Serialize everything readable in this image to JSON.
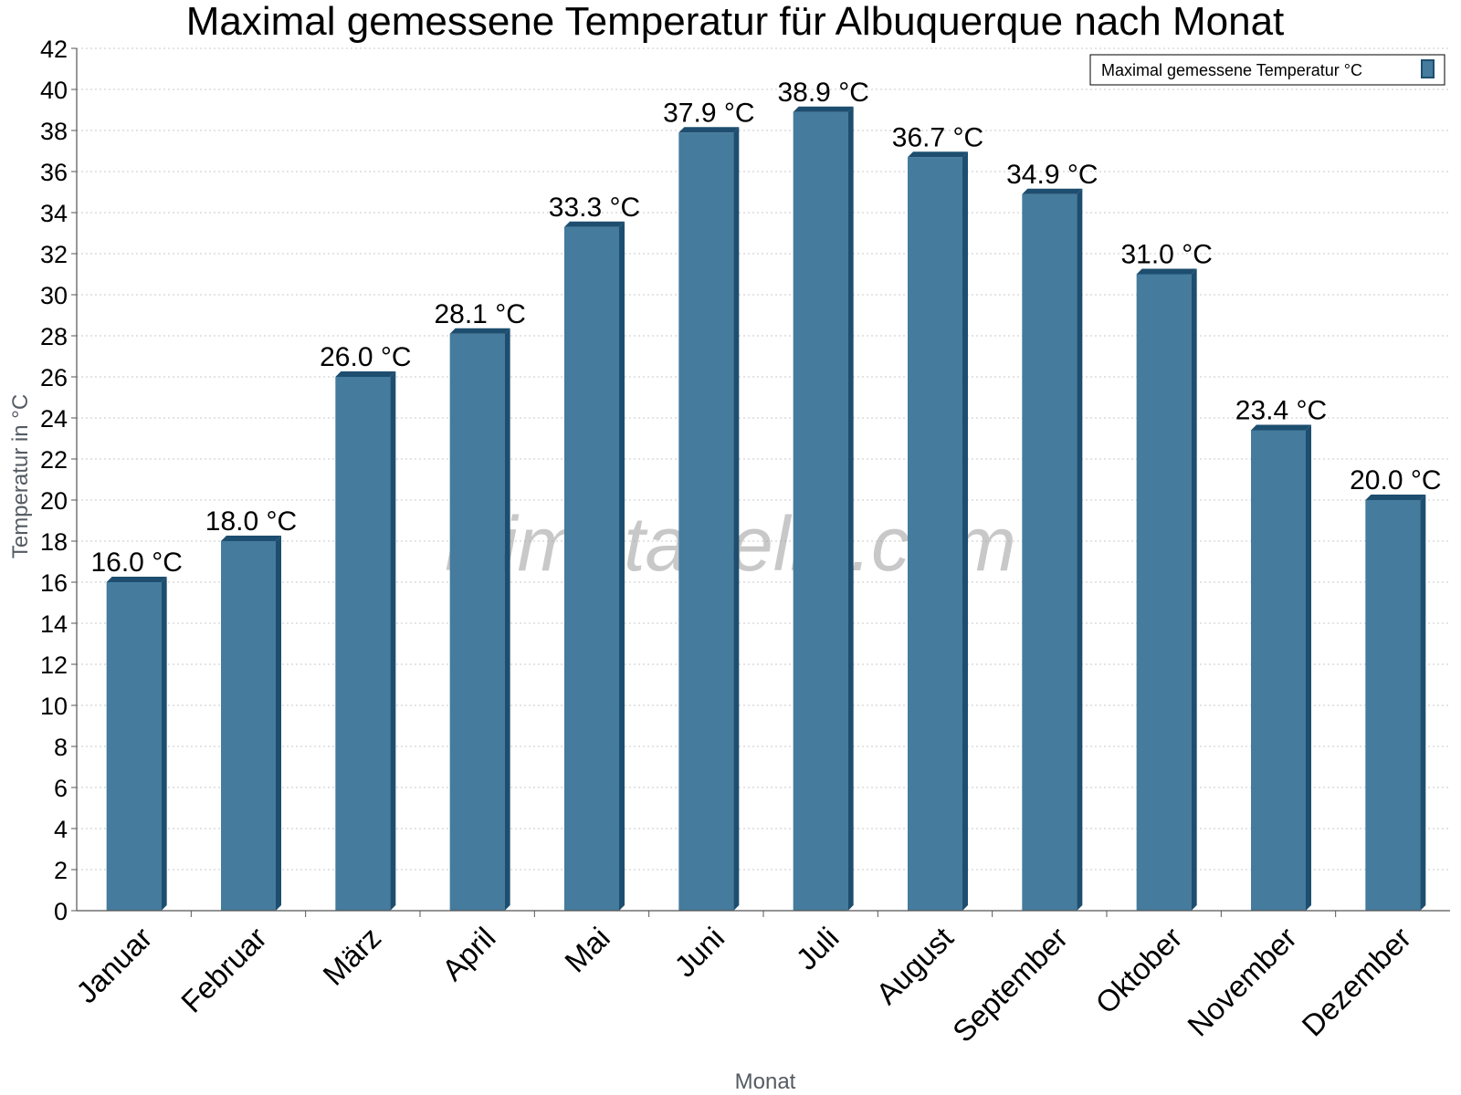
{
  "chart_data": {
    "type": "bar",
    "title": "Maximal gemessene Temperatur für Albuquerque nach Monat",
    "xlabel": "Monat",
    "ylabel": "Temperatur in °C",
    "ylim": [
      0,
      42
    ],
    "ytick_step": 2,
    "grid": true,
    "legend_position": "top-right",
    "categories": [
      "Januar",
      "Februar",
      "März",
      "April",
      "Mai",
      "Juni",
      "Juli",
      "August",
      "September",
      "Oktober",
      "November",
      "Dezember"
    ],
    "series": [
      {
        "name": "Maximal gemessene Temperatur °C",
        "values": [
          16.0,
          18.0,
          26.0,
          28.1,
          33.3,
          37.9,
          38.9,
          36.7,
          34.9,
          31.0,
          23.4,
          20.0
        ],
        "labels": [
          "16.0 °C",
          "18.0 °C",
          "26.0 °C",
          "28.1 °C",
          "33.3 °C",
          "37.9 °C",
          "38.9 °C",
          "36.7 °C",
          "34.9 °C",
          "31.0 °C",
          "23.4 °C",
          "20.0 °C"
        ],
        "color": "#457b9d",
        "edge_color": "#1d4e6f"
      }
    ]
  },
  "watermark": "klimatabelle.com"
}
